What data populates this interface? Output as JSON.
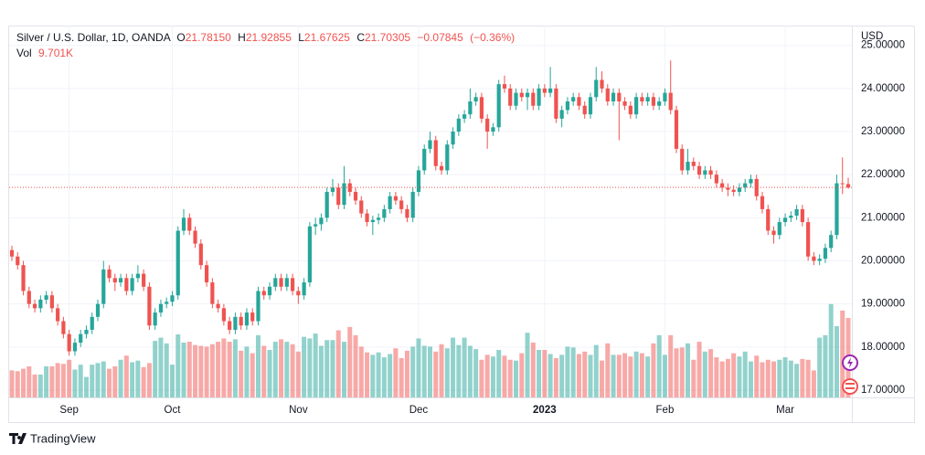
{
  "chart_data": {
    "type": "candlestick",
    "readout": {
      "symbol": "Silver / U.S. Dollar, 1D, OANDA",
      "fields": [
        {
          "name": "O",
          "value": 21.7815,
          "label": "21.78150"
        },
        {
          "name": "H",
          "value": 21.92855,
          "label": "21.92855"
        },
        {
          "name": "L",
          "value": 21.67625,
          "label": "21.67625"
        },
        {
          "name": "C",
          "value": 21.70305,
          "label": "21.70305"
        }
      ],
      "change": {
        "value": -0.07845,
        "label": "−0.07845"
      },
      "change_percent": {
        "value": -0.36,
        "label": "(−0.36%)"
      }
    },
    "currency": "USD",
    "branding": "TradingView",
    "up_color": "#26a69a",
    "down_color": "#ef5350",
    "grid": true,
    "ylim": [
      16.83,
      25.46
    ],
    "yticks": [
      {
        "value": 17,
        "label": "17.00000"
      },
      {
        "value": 18,
        "label": "18.00000"
      },
      {
        "value": 19,
        "label": "19.00000"
      },
      {
        "value": 20,
        "label": "20.00000"
      },
      {
        "value": 21,
        "label": "21.00000"
      },
      {
        "value": 22,
        "label": "22.00000"
      },
      {
        "value": 23,
        "label": "23.00000"
      },
      {
        "value": 24,
        "label": "24.00000"
      },
      {
        "value": 25,
        "label": "25.00000"
      }
    ],
    "categories": [
      null,
      null,
      null,
      null,
      null,
      null,
      null,
      null,
      null,
      null,
      "Sep",
      null,
      null,
      null,
      null,
      null,
      null,
      null,
      null,
      null,
      null,
      null,
      null,
      null,
      null,
      null,
      null,
      null,
      "Oct",
      null,
      null,
      null,
      null,
      null,
      null,
      null,
      null,
      null,
      null,
      null,
      null,
      null,
      null,
      null,
      null,
      null,
      null,
      null,
      null,
      null,
      "Nov",
      null,
      null,
      null,
      null,
      null,
      null,
      null,
      null,
      null,
      null,
      null,
      null,
      null,
      null,
      null,
      null,
      null,
      null,
      null,
      null,
      "Dec",
      null,
      null,
      null,
      null,
      null,
      null,
      null,
      null,
      null,
      null,
      null,
      null,
      null,
      null,
      null,
      null,
      null,
      null,
      null,
      null,
      null,
      "2023",
      null,
      null,
      null,
      null,
      null,
      null,
      null,
      null,
      null,
      null,
      null,
      null,
      null,
      null,
      null,
      null,
      null,
      null,
      null,
      null,
      "Feb",
      null,
      null,
      null,
      null,
      null,
      null,
      null,
      null,
      null,
      null,
      null,
      null,
      null,
      null,
      null,
      null,
      null,
      null,
      null,
      null,
      "Mar",
      null,
      null,
      null,
      null,
      null,
      null,
      null,
      null,
      null,
      null,
      null
    ],
    "open": [
      20.25,
      20.1,
      19.9,
      19.3,
      19.0,
      18.9,
      19.1,
      19.2,
      18.9,
      18.6,
      18.3,
      17.9,
      18.1,
      18.3,
      18.4,
      18.7,
      19.0,
      19.8,
      19.6,
      19.5,
      19.6,
      19.3,
      19.6,
      19.7,
      19.4,
      18.5,
      18.8,
      19.0,
      19.05,
      19.2,
      20.7,
      21.0,
      20.7,
      20.4,
      19.9,
      19.5,
      19.0,
      18.9,
      18.6,
      18.4,
      18.7,
      18.5,
      18.8,
      18.6,
      19.3,
      19.2,
      19.4,
      19.6,
      19.4,
      19.6,
      19.3,
      19.2,
      19.5,
      20.8,
      20.85,
      21.0,
      21.6,
      21.7,
      21.3,
      21.8,
      21.6,
      21.4,
      21.1,
      20.9,
      20.95,
      21.0,
      21.2,
      21.5,
      21.4,
      21.2,
      21.0,
      21.6,
      22.1,
      22.6,
      22.8,
      22.2,
      22.1,
      22.7,
      23.0,
      23.3,
      23.4,
      23.7,
      23.8,
      23.3,
      23.0,
      23.1,
      24.1,
      24.0,
      23.6,
      23.9,
      23.8,
      23.9,
      23.6,
      24.0,
      23.9,
      24.0,
      23.3,
      23.5,
      23.7,
      23.8,
      23.6,
      23.4,
      23.8,
      24.2,
      24.0,
      23.7,
      23.9,
      23.7,
      23.6,
      23.4,
      23.8,
      23.7,
      23.8,
      23.6,
      23.7,
      23.9,
      23.5,
      22.6,
      22.1,
      22.3,
      22.2,
      22.0,
      22.1,
      22.0,
      21.8,
      21.7,
      21.65,
      21.6,
      21.7,
      21.8,
      21.9,
      21.5,
      21.2,
      20.7,
      20.6,
      20.9,
      21.0,
      21.05,
      21.2,
      20.9,
      20.1,
      20.0,
      20.05,
      20.3,
      20.6,
      21.8,
      21.7815
    ],
    "high": [
      20.35,
      20.2,
      20.0,
      19.4,
      19.1,
      19.2,
      19.3,
      19.3,
      19.0,
      18.7,
      18.4,
      18.2,
      18.4,
      18.5,
      18.8,
      19.1,
      20.0,
      19.9,
      19.7,
      19.7,
      19.7,
      19.7,
      19.9,
      19.8,
      19.5,
      18.9,
      19.1,
      19.15,
      19.3,
      20.8,
      21.2,
      21.1,
      20.8,
      20.5,
      20.0,
      19.6,
      19.1,
      19.0,
      18.7,
      18.8,
      18.8,
      18.9,
      18.9,
      19.4,
      19.4,
      19.5,
      19.7,
      19.7,
      19.7,
      19.7,
      19.4,
      19.6,
      20.9,
      21.0,
      21.1,
      21.7,
      21.9,
      21.8,
      22.2,
      21.9,
      21.7,
      21.5,
      21.2,
      21.05,
      21.1,
      21.3,
      21.6,
      21.6,
      21.5,
      21.3,
      21.7,
      22.2,
      22.7,
      23.0,
      22.9,
      22.3,
      22.8,
      23.1,
      23.4,
      23.5,
      24.0,
      23.9,
      23.9,
      23.4,
      23.2,
      24.2,
      24.3,
      24.1,
      24.0,
      24.0,
      24.0,
      24.0,
      24.1,
      24.1,
      24.5,
      24.1,
      23.6,
      23.8,
      23.9,
      23.9,
      23.7,
      23.9,
      24.5,
      24.4,
      24.1,
      24.0,
      24.0,
      23.8,
      23.7,
      23.9,
      23.9,
      23.9,
      23.9,
      23.8,
      24.0,
      24.65,
      23.6,
      22.7,
      22.6,
      22.4,
      22.3,
      22.2,
      22.2,
      22.1,
      21.9,
      21.8,
      21.75,
      21.8,
      21.9,
      22.0,
      22.0,
      21.6,
      21.3,
      20.8,
      21.0,
      21.1,
      21.15,
      21.3,
      21.3,
      21.0,
      20.2,
      20.15,
      20.4,
      20.7,
      22.0,
      22.4,
      21.92855
    ],
    "low": [
      20.0,
      19.8,
      19.2,
      18.9,
      18.8,
      18.8,
      19.0,
      18.8,
      18.5,
      18.2,
      17.8,
      17.8,
      18.0,
      18.2,
      18.3,
      18.6,
      18.9,
      19.5,
      19.3,
      19.4,
      19.2,
      19.2,
      19.5,
      19.3,
      18.4,
      18.4,
      18.7,
      18.9,
      18.95,
      19.1,
      20.6,
      20.6,
      20.3,
      19.8,
      19.4,
      18.9,
      18.8,
      18.5,
      18.3,
      18.3,
      18.4,
      18.4,
      18.5,
      18.5,
      19.1,
      19.1,
      19.3,
      19.3,
      19.3,
      19.2,
      19.0,
      19.1,
      19.4,
      20.6,
      20.7,
      20.9,
      21.5,
      21.2,
      21.2,
      21.5,
      21.3,
      21.0,
      20.8,
      20.6,
      20.85,
      20.9,
      21.1,
      21.3,
      21.1,
      20.9,
      20.9,
      21.5,
      22.0,
      22.5,
      22.1,
      22.0,
      22.0,
      22.6,
      22.9,
      23.2,
      23.3,
      23.6,
      23.2,
      22.6,
      22.9,
      23.0,
      23.9,
      23.5,
      23.5,
      23.7,
      23.5,
      23.5,
      23.5,
      23.8,
      23.8,
      23.2,
      23.1,
      23.4,
      23.6,
      23.5,
      23.3,
      23.3,
      23.7,
      23.9,
      23.6,
      23.6,
      22.8,
      23.5,
      23.3,
      23.3,
      23.6,
      23.6,
      23.5,
      23.5,
      23.6,
      23.4,
      22.5,
      22.0,
      22.0,
      22.1,
      21.9,
      21.9,
      21.9,
      21.7,
      21.6,
      21.5,
      21.5,
      21.5,
      21.6,
      21.7,
      21.4,
      21.1,
      20.6,
      20.4,
      20.5,
      20.8,
      20.9,
      20.95,
      20.8,
      20.0,
      19.9,
      19.9,
      19.95,
      20.2,
      20.5,
      21.55,
      21.67625
    ],
    "close": [
      20.1,
      19.9,
      19.3,
      19.0,
      18.9,
      19.1,
      19.2,
      18.9,
      18.6,
      18.3,
      17.9,
      18.1,
      18.3,
      18.4,
      18.7,
      19.0,
      19.8,
      19.6,
      19.5,
      19.6,
      19.3,
      19.6,
      19.7,
      19.4,
      18.5,
      18.8,
      19.0,
      19.05,
      19.2,
      20.7,
      21.0,
      20.7,
      20.4,
      19.9,
      19.5,
      19.0,
      18.9,
      18.6,
      18.4,
      18.7,
      18.5,
      18.8,
      18.6,
      19.3,
      19.2,
      19.4,
      19.6,
      19.4,
      19.6,
      19.3,
      19.2,
      19.5,
      20.8,
      20.85,
      21.0,
      21.6,
      21.7,
      21.3,
      21.8,
      21.6,
      21.4,
      21.1,
      20.9,
      20.95,
      21.0,
      21.2,
      21.5,
      21.4,
      21.2,
      21.0,
      21.6,
      22.1,
      22.6,
      22.8,
      22.2,
      22.1,
      22.7,
      23.0,
      23.3,
      23.4,
      23.7,
      23.8,
      23.3,
      23.0,
      23.1,
      24.1,
      24.0,
      23.6,
      23.9,
      23.8,
      23.9,
      23.6,
      24.0,
      23.9,
      24.0,
      23.3,
      23.5,
      23.7,
      23.8,
      23.6,
      23.4,
      23.8,
      24.2,
      24.0,
      23.7,
      23.9,
      23.7,
      23.6,
      23.4,
      23.8,
      23.7,
      23.8,
      23.6,
      23.7,
      23.9,
      23.5,
      22.6,
      22.1,
      22.3,
      22.2,
      22.0,
      22.1,
      22.0,
      21.8,
      21.7,
      21.65,
      21.6,
      21.7,
      21.8,
      21.9,
      21.5,
      21.2,
      20.7,
      20.6,
      20.9,
      21.0,
      21.05,
      21.2,
      20.9,
      20.1,
      20.0,
      20.05,
      20.3,
      20.6,
      21.8,
      21.78,
      21.70305
    ],
    "volume": {
      "name": "Vol",
      "readout": {
        "value": 9.701,
        "label": "9.701K"
      },
      "vlim": [
        0,
        45.4
      ],
      "values": [
        3.3,
        3.2,
        3.5,
        3.8,
        2.8,
        2.8,
        3.8,
        3.8,
        4.2,
        4.1,
        4.6,
        3.4,
        4.0,
        2.5,
        4.0,
        4.2,
        4.4,
        3.5,
        3.8,
        4.6,
        5.1,
        4.3,
        4.5,
        3.7,
        4.2,
        6.9,
        7.3,
        6.6,
        4.0,
        7.7,
        6.7,
        6.8,
        6.4,
        6.3,
        6.2,
        6.5,
        6.8,
        7.2,
        6.8,
        7.1,
        5.7,
        6.2,
        5.4,
        7.6,
        6.3,
        5.8,
        6.8,
        7.1,
        6.8,
        6.5,
        5.6,
        7.4,
        7.2,
        7.8,
        6.3,
        7.0,
        7.0,
        8.2,
        6.8,
        8.6,
        7.6,
        6.2,
        5.5,
        5.2,
        5.5,
        4.9,
        5.3,
        6.0,
        4.8,
        5.7,
        6.2,
        7.2,
        6.3,
        6.2,
        5.6,
        6.5,
        6.0,
        7.3,
        6.4,
        7.3,
        6.3,
        5.9,
        4.6,
        5.2,
        5.0,
        5.8,
        5.1,
        4.6,
        4.5,
        5.4,
        7.9,
        6.7,
        5.8,
        5.8,
        5.3,
        4.8,
        5.2,
        6.2,
        6.1,
        5.3,
        5.6,
        5.2,
        6.4,
        4.5,
        6.6,
        5.2,
        5.2,
        5.4,
        5.0,
        5.6,
        5.4,
        5.0,
        6.6,
        7.6,
        5.2,
        7.6,
        6.0,
        6.1,
        6.6,
        4.6,
        6.8,
        5.6,
        5.9,
        4.9,
        4.4,
        4.7,
        5.4,
        5.0,
        5.6,
        4.4,
        5.1,
        4.3,
        4.6,
        4.4,
        4.6,
        4.9,
        4.5,
        4.1,
        4.7,
        4.6,
        3.3,
        7.3,
        7.6,
        11.4,
        8.7,
        10.6,
        9.701
      ]
    }
  }
}
